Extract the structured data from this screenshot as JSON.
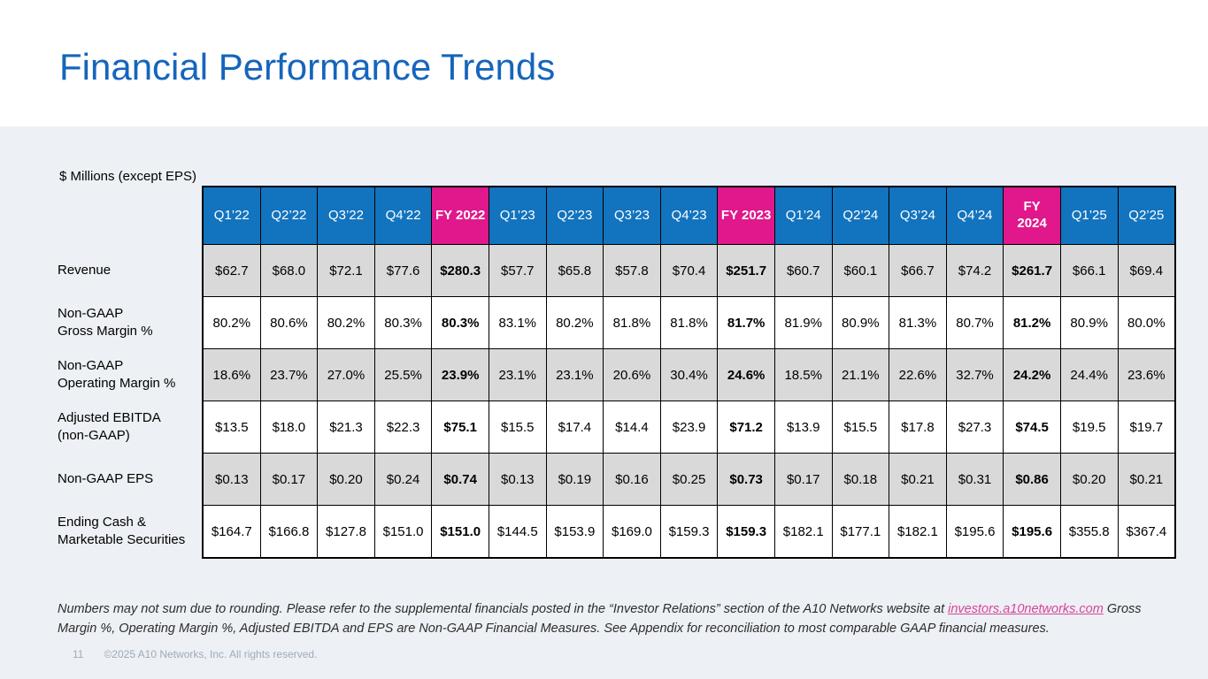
{
  "slide": {
    "title": "Financial Performance Trends",
    "page_number": "11",
    "copyright": "©2025 A10 Networks, Inc. All rights reserved."
  },
  "colors": {
    "title_blue": "#1565BC",
    "header_blue": "#1273BE",
    "header_magenta": "#E0188C",
    "row_shade_gray": "#D9D9D9",
    "link_pink": "#D6459A",
    "body_background": "#EDF0F4"
  },
  "table": {
    "unit_label": "$ Millions (except EPS)",
    "columns": [
      {
        "label": "Q1’22",
        "fy": false
      },
      {
        "label": "Q2’22",
        "fy": false
      },
      {
        "label": "Q3’22",
        "fy": false
      },
      {
        "label": "Q4’22",
        "fy": false
      },
      {
        "label": "FY 2022",
        "fy": true
      },
      {
        "label": "Q1’23",
        "fy": false
      },
      {
        "label": "Q2’23",
        "fy": false
      },
      {
        "label": "Q3’23",
        "fy": false
      },
      {
        "label": "Q4’23",
        "fy": false
      },
      {
        "label": "FY 2023",
        "fy": true
      },
      {
        "label": "Q1’24",
        "fy": false
      },
      {
        "label": "Q2’24",
        "fy": false
      },
      {
        "label": "Q3’24",
        "fy": false
      },
      {
        "label": "Q4’24",
        "fy": false
      },
      {
        "label": "FY\n2024",
        "fy": true
      },
      {
        "label": "Q1’25",
        "fy": false
      },
      {
        "label": "Q2’25",
        "fy": false
      }
    ],
    "rows": [
      {
        "label": "Revenue",
        "shaded": true,
        "values": [
          "$62.7",
          "$68.0",
          "$72.1",
          "$77.6",
          "$280.3",
          "$57.7",
          "$65.8",
          "$57.8",
          "$70.4",
          "$251.7",
          "$60.7",
          "$60.1",
          "$66.7",
          "$74.2",
          "$261.7",
          "$66.1",
          "$69.4"
        ]
      },
      {
        "label": "Non-GAAP\nGross Margin %",
        "shaded": false,
        "values": [
          "80.2%",
          "80.6%",
          "80.2%",
          "80.3%",
          "80.3%",
          "83.1%",
          "80.2%",
          "81.8%",
          "81.8%",
          "81.7%",
          "81.9%",
          "80.9%",
          "81.3%",
          "80.7%",
          "81.2%",
          "80.9%",
          "80.0%"
        ]
      },
      {
        "label": "Non-GAAP\nOperating Margin %",
        "shaded": true,
        "values": [
          "18.6%",
          "23.7%",
          "27.0%",
          "25.5%",
          "23.9%",
          "23.1%",
          "23.1%",
          "20.6%",
          "30.4%",
          "24.6%",
          "18.5%",
          "21.1%",
          "22.6%",
          "32.7%",
          "24.2%",
          "24.4%",
          "23.6%"
        ]
      },
      {
        "label": "Adjusted EBITDA\n(non-GAAP)",
        "shaded": false,
        "values": [
          "$13.5",
          "$18.0",
          "$21.3",
          "$22.3",
          "$75.1",
          "$15.5",
          "$17.4",
          "$14.4",
          "$23.9",
          "$71.2",
          "$13.9",
          "$15.5",
          "$17.8",
          "$27.3",
          "$74.5",
          "$19.5",
          "$19.7"
        ]
      },
      {
        "label": "Non-GAAP EPS",
        "shaded": true,
        "values": [
          "$0.13",
          "$0.17",
          "$0.20",
          "$0.24",
          "$0.74",
          "$0.13",
          "$0.19",
          "$0.16",
          "$0.25",
          "$0.73",
          "$0.17",
          "$0.18",
          "$0.21",
          "$0.31",
          "$0.86",
          "$0.20",
          "$0.21"
        ]
      },
      {
        "label": "Ending Cash &\nMarketable Securities",
        "shaded": false,
        "values": [
          "$164.7",
          "$166.8",
          "$127.8",
          "$151.0",
          "$151.0",
          "$144.5",
          "$153.9",
          "$169.0",
          "$159.3",
          "$159.3",
          "$182.1",
          "$177.1",
          "$182.1",
          "$195.6",
          "$195.6",
          "$355.8",
          "$367.4"
        ]
      }
    ]
  },
  "footnote": {
    "text_before_link": "Numbers may not sum due to rounding. Please refer to the supplemental financials posted in the “Investor Relations” section of the A10 Networks website at ",
    "link_text": "investors.a10networks.com",
    "text_after_link": " Gross Margin %, Operating Margin %, Adjusted EBITDA and EPS are Non-GAAP Financial Measures.  See Appendix for reconciliation to most comparable GAAP financial measures."
  }
}
